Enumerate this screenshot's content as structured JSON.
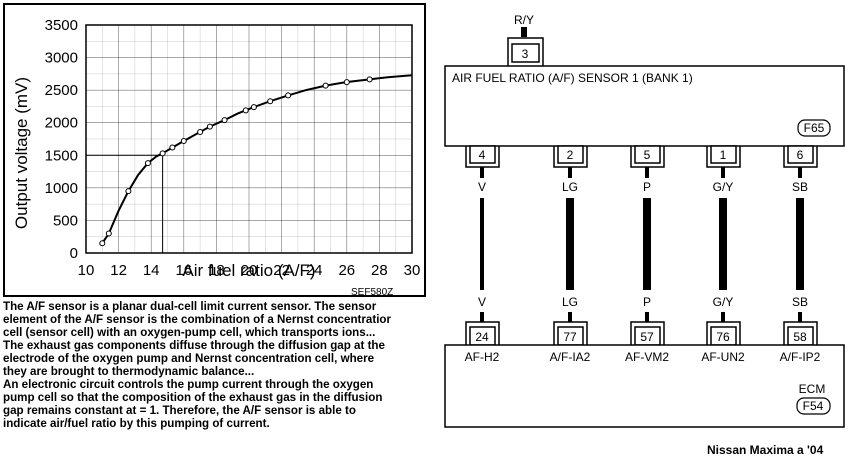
{
  "chart_data": {
    "type": "line",
    "title": "",
    "xlabel": "Air fuel ratio (A/F)",
    "ylabel": "Output voltage (mV)",
    "xlim": [
      10,
      30
    ],
    "ylim": [
      0,
      3500
    ],
    "x_ticks": [
      "10",
      "12",
      "14",
      "16",
      "18",
      "20",
      "22",
      "24",
      "26",
      "28",
      "30"
    ],
    "y_ticks": [
      "0",
      "500",
      "1000",
      "1500",
      "2000",
      "2500",
      "3000",
      "3500"
    ],
    "grid": true,
    "figure_code": "SEF580Z",
    "series": [
      {
        "name": "",
        "x": [
          11.0,
          11.4,
          12.0,
          12.6,
          13.2,
          13.8,
          14.3,
          14.7,
          15.3,
          16.0,
          16.8,
          17.6,
          18.5,
          19.3,
          20.3,
          21.3,
          22.4,
          23.5,
          24.7,
          25.9,
          27.2,
          28.6,
          30.0
        ],
        "y": [
          150,
          300,
          650,
          950,
          1200,
          1380,
          1480,
          1530,
          1620,
          1720,
          1830,
          1940,
          2040,
          2140,
          2240,
          2330,
          2420,
          2500,
          2570,
          2620,
          2660,
          2700,
          2730
        ],
        "markers_at": [
          11.0,
          11.4,
          12.6,
          13.8,
          14.7,
          15.3,
          16.0,
          17.0,
          17.6,
          18.5,
          19.8,
          20.3,
          21.3,
          22.4,
          24.7,
          26.0,
          27.4
        ]
      }
    ],
    "reference_lines": {
      "x": 14.7,
      "y": 1500
    }
  },
  "description": "The A/F sensor is a planar dual-cell limit current sensor. The sensor\nelement of the A/F sensor is the combination of a Nernst concentratior\ncell (sensor cell) with an oxygen-pump cell, which transports ions...\nThe exhaust gas components diffuse through the diffusion gap at the\nelectrode of the oxygen pump and Nernst concentration cell, where\nthey are brought to thermodynamic balance...\nAn electronic circuit controls the pump current through the oxygen\npump cell so that the composition of the exhaust gas in the diffusion\ngap remains constant at = 1. Therefore, the A/F sensor is able to\nindicate air/fuel ratio by this pumping of current.",
  "wiring": {
    "sensor": {
      "title": "AIR FUEL RATIO (A/F) SENSOR 1 (BANK 1)",
      "connector_code": "F65",
      "top_pin": {
        "number": "3",
        "color": "R/Y"
      },
      "pins": [
        {
          "pin": "4",
          "color": "V"
        },
        {
          "pin": "2",
          "color": "LG"
        },
        {
          "pin": "5",
          "color": "P"
        },
        {
          "pin": "1",
          "color": "G/Y"
        },
        {
          "pin": "6",
          "color": "SB"
        }
      ]
    },
    "ecm": {
      "title": "ECM",
      "connector_code": "F54",
      "pins": [
        {
          "pin": "24",
          "color": "V",
          "signal": "AF-H2"
        },
        {
          "pin": "77",
          "color": "LG",
          "signal": "A/F-IA2"
        },
        {
          "pin": "57",
          "color": "P",
          "signal": "AF-VM2"
        },
        {
          "pin": "76",
          "color": "G/Y",
          "signal": "AF-UN2"
        },
        {
          "pin": "58",
          "color": "SB",
          "signal": "A/F-IP2"
        }
      ]
    }
  },
  "credit": "Nissan Maxima a '04"
}
